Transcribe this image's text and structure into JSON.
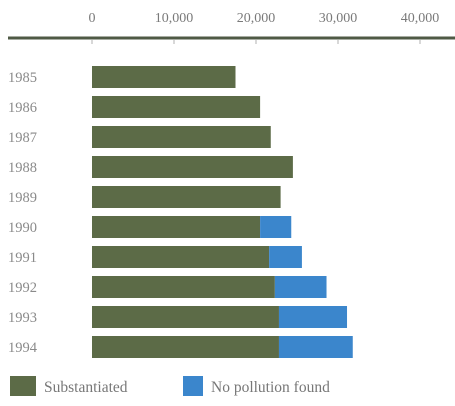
{
  "chart_data": {
    "type": "bar",
    "orientation": "horizontal",
    "stacked": true,
    "categories": [
      "1985",
      "1986",
      "1987",
      "1988",
      "1989",
      "1990",
      "1991",
      "1992",
      "1993",
      "1994"
    ],
    "series": [
      {
        "name": "Substantiated",
        "values": [
          17500,
          20500,
          21800,
          24500,
          23000,
          20500,
          21600,
          22300,
          22800,
          22800
        ]
      },
      {
        "name": "No pollution found",
        "values": [
          0,
          0,
          0,
          0,
          0,
          3800,
          4000,
          6300,
          8300,
          9000
        ]
      }
    ],
    "xlim": [
      0,
      40000
    ],
    "xticks": [
      "0",
      "10,000",
      "20,000",
      "30,000",
      "40,000"
    ],
    "xtick_values": [
      0,
      10000,
      20000,
      30000,
      40000
    ],
    "axis_position": "top",
    "legend_position": "bottom-left",
    "grid": false,
    "colors": {
      "Substantiated": "#5c6b47",
      "No pollution found": "#3b86cc",
      "axis": "#4f5a45"
    }
  }
}
